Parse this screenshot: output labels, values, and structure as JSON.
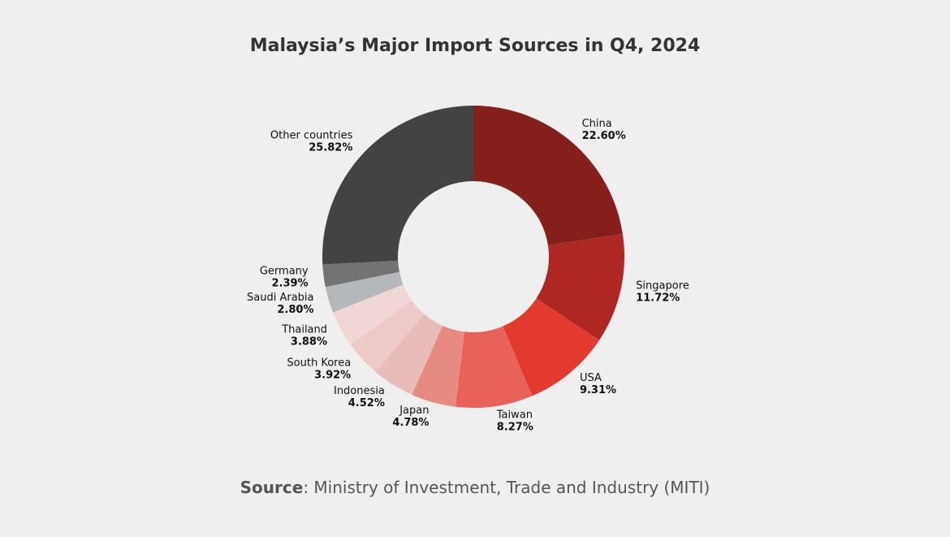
{
  "chart_data": {
    "type": "donut",
    "title": "Malaysia’s Major Import Sources in Q4, 2024",
    "categories": [
      "China",
      "Singapore",
      "USA",
      "Taiwan",
      "Japan",
      "Indonesia",
      "South Korea",
      "Thailand",
      "Saudi Arabia",
      "Germany",
      "Other countries"
    ],
    "values": [
      22.6,
      11.72,
      9.31,
      8.27,
      4.78,
      4.52,
      3.92,
      3.88,
      2.8,
      2.39,
      25.82
    ],
    "value_labels": [
      "22.60%",
      "11.72%",
      "9.31%",
      "8.27%",
      "4.78%",
      "4.52%",
      "3.92%",
      "3.88%",
      "2.80%",
      "2.39%",
      "25.82%"
    ],
    "colors": [
      "#841f1c",
      "#ae2722",
      "#e33a2f",
      "#e9625a",
      "#e68b82",
      "#e8bcb9",
      "#edc9c8",
      "#f0d6d5",
      "#b5b8ba",
      "#737373",
      "#434345"
    ],
    "source_label": "Source",
    "source_text": ": Ministry of Investment, Trade and Industry (MITI)"
  }
}
